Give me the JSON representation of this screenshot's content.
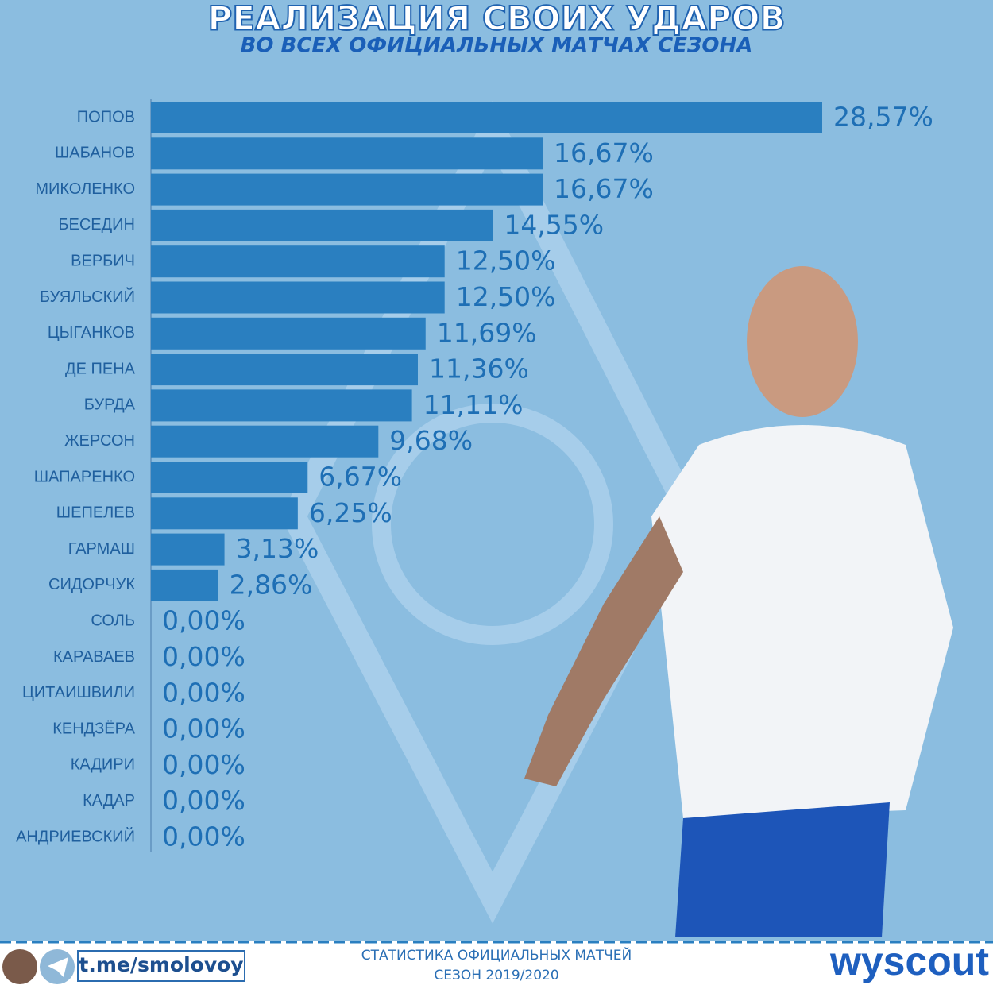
{
  "chart_data": {
    "type": "hbar",
    "title": "РЕАЛИЗАЦИЯ СВОИХ УДАРОВ",
    "subtitle": "ВО ВСЕХ ОФИЦИАЛЬНЫХ МАТЧАХ СЕЗОНА",
    "categories": [
      "ПОПОВ",
      "ШАБАНОВ",
      "МИКОЛЕНКО",
      "БЕСЕДИН",
      "ВЕРБИЧ",
      "БУЯЛЬСКИЙ",
      "ЦЫГАНКОВ",
      "ДЕ ПЕНА",
      "БУРДА",
      "ЖЕРСОН",
      "ШАПАРЕНКО",
      "ШЕПЕЛЕВ",
      "ГАРМАШ",
      "СИДОРЧУК",
      "СОЛЬ",
      "КАРАВАЕВ",
      "ЦИТАИШВИЛИ",
      "КЕНДЗЁРА",
      "КАДИРИ",
      "КАДАР",
      "АНДРИЕВСКИЙ"
    ],
    "values": [
      28.57,
      16.67,
      16.67,
      14.55,
      12.5,
      12.5,
      11.69,
      11.36,
      11.11,
      9.68,
      6.67,
      6.25,
      3.13,
      2.86,
      0,
      0,
      0,
      0,
      0,
      0,
      0
    ],
    "value_labels": [
      "28,57%",
      "16,67%",
      "16,67%",
      "14,55%",
      "12,50%",
      "12,50%",
      "11,69%",
      "11,36%",
      "11,11%",
      "9,68%",
      "6,67%",
      "6,25%",
      "3,13%",
      "2,86%",
      "0,00%",
      "0,00%",
      "0,00%",
      "0,00%",
      "0,00%",
      "0,00%",
      "0,00%"
    ],
    "color": "#2a7fc0"
  },
  "footer": {
    "channel": "t.me/smolovoy",
    "note_line1": "СТАТИСТИКА ОФИЦИАЛЬНЫХ МАТЧЕЙ",
    "note_line2": "СЕЗОН 2019/2020",
    "brand": "wyscout"
  }
}
